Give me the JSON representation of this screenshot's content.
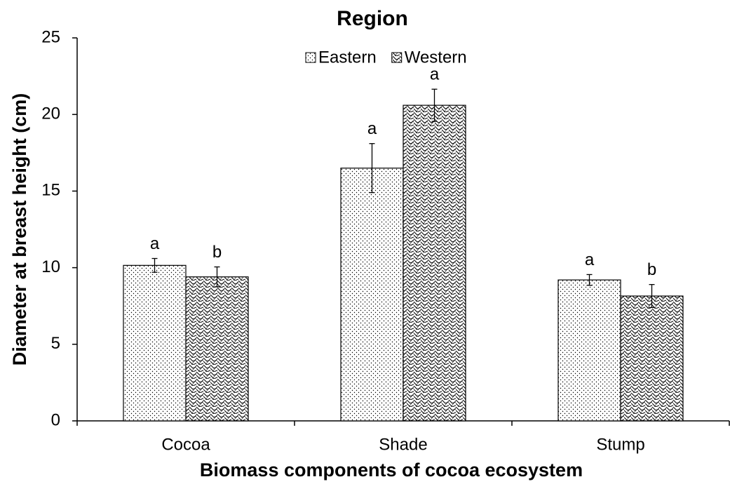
{
  "chart_data": {
    "type": "bar",
    "title": "Region",
    "x_label": "Biomass components of cocoa ecosystem",
    "y_label": "Diameter at breast height (cm)",
    "categories": [
      "Cocoa",
      "Shade",
      "Stump"
    ],
    "series": [
      {
        "name": "Eastern",
        "color": "#000000",
        "pattern": "dots",
        "values": [
          10.15,
          16.5,
          9.2
        ],
        "errors": [
          0.45,
          1.6,
          0.35
        ],
        "letters": [
          "a",
          "a",
          "a"
        ]
      },
      {
        "name": "Western",
        "color": "#000000",
        "pattern": "waves",
        "values": [
          9.4,
          20.6,
          8.15
        ],
        "errors": [
          0.65,
          1.05,
          0.75
        ],
        "letters": [
          "b",
          "a",
          "b"
        ]
      }
    ],
    "ylim": [
      0,
      25
    ],
    "yticks": [
      0,
      5,
      10,
      15,
      20,
      25
    ],
    "grid": false,
    "legend": "top"
  }
}
